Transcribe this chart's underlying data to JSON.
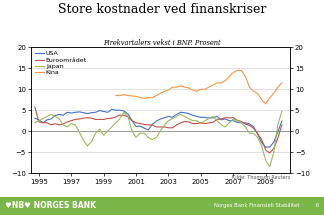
{
  "title": "Store kostnader ved finanskriser",
  "subtitle": "Firekvartalers vekst i BNP. Prosent",
  "source": "Kilde: Thomson Reuters",
  "footer_left": "♥NB♥ NORGES BANK",
  "footer_right": "Norges Bank Finansiell Stabilitet          6",
  "footer_bg": "#7ab648",
  "ylim": [
    -10,
    20
  ],
  "xlabel_years": [
    1995,
    1997,
    1999,
    2001,
    2003,
    2005,
    2007,
    2009
  ],
  "line_colors": {
    "USA": "#4472c4",
    "Euroområdet": "#c0504d",
    "Japan": "#9bbb59",
    "Kina": "#f79646"
  },
  "USA": {
    "x": [
      1994.75,
      1995.0,
      1995.25,
      1995.5,
      1995.75,
      1996.0,
      1996.25,
      1996.5,
      1996.75,
      1997.0,
      1997.25,
      1997.5,
      1997.75,
      1998.0,
      1998.25,
      1998.5,
      1998.75,
      1999.0,
      1999.25,
      1999.5,
      1999.75,
      2000.0,
      2000.25,
      2000.5,
      2000.75,
      2001.0,
      2001.25,
      2001.5,
      2001.75,
      2002.0,
      2002.25,
      2002.5,
      2002.75,
      2003.0,
      2003.25,
      2003.5,
      2003.75,
      2004.0,
      2004.25,
      2004.5,
      2004.75,
      2005.0,
      2005.25,
      2005.5,
      2005.75,
      2006.0,
      2006.25,
      2006.5,
      2006.75,
      2007.0,
      2007.25,
      2007.5,
      2007.75,
      2008.0,
      2008.25,
      2008.5,
      2008.75,
      2009.0,
      2009.25,
      2009.5,
      2009.75,
      2010.0
    ],
    "y": [
      3.1,
      2.7,
      2.0,
      2.7,
      2.9,
      3.7,
      4.0,
      3.8,
      4.5,
      4.3,
      4.5,
      4.6,
      4.4,
      4.2,
      4.4,
      4.5,
      4.9,
      4.7,
      4.5,
      5.2,
      5.0,
      5.0,
      4.8,
      4.1,
      2.5,
      1.1,
      1.2,
      0.7,
      0.3,
      1.6,
      2.4,
      2.9,
      3.2,
      3.5,
      3.3,
      4.0,
      4.5,
      4.4,
      4.2,
      3.8,
      3.5,
      3.3,
      3.3,
      3.1,
      3.2,
      3.5,
      2.7,
      2.9,
      2.5,
      2.5,
      2.1,
      2.0,
      2.0,
      1.7,
      1.1,
      -0.7,
      -2.7,
      -3.8,
      -3.8,
      -2.6,
      -0.2,
      2.4
    ]
  },
  "Euroområdet": {
    "x": [
      1994.75,
      1995.0,
      1995.25,
      1995.5,
      1995.75,
      1996.0,
      1996.25,
      1996.5,
      1996.75,
      1997.0,
      1997.25,
      1997.5,
      1997.75,
      1998.0,
      1998.25,
      1998.5,
      1998.75,
      1999.0,
      1999.25,
      1999.5,
      1999.75,
      2000.0,
      2000.25,
      2000.5,
      2000.75,
      2001.0,
      2001.25,
      2001.5,
      2001.75,
      2002.0,
      2002.25,
      2002.5,
      2002.75,
      2003.0,
      2003.25,
      2003.5,
      2003.75,
      2004.0,
      2004.25,
      2004.5,
      2004.75,
      2005.0,
      2005.25,
      2005.5,
      2005.75,
      2006.0,
      2006.25,
      2006.5,
      2006.75,
      2007.0,
      2007.25,
      2007.5,
      2007.75,
      2008.0,
      2008.25,
      2008.5,
      2008.75,
      2009.0,
      2009.25,
      2009.5,
      2009.75,
      2010.0
    ],
    "y": [
      5.8,
      2.2,
      2.0,
      2.0,
      1.5,
      1.8,
      1.5,
      1.7,
      2.2,
      2.5,
      2.8,
      2.9,
      3.1,
      3.2,
      3.1,
      2.8,
      2.8,
      2.8,
      3.0,
      3.1,
      3.4,
      3.8,
      3.8,
      3.4,
      2.5,
      2.0,
      1.8,
      1.6,
      1.5,
      1.5,
      1.0,
      1.0,
      1.0,
      0.8,
      0.8,
      1.5,
      2.0,
      2.3,
      2.2,
      1.8,
      1.8,
      2.0,
      1.8,
      2.0,
      2.1,
      2.8,
      2.9,
      3.2,
      3.2,
      3.2,
      2.6,
      2.3,
      1.7,
      1.4,
      0.7,
      -0.6,
      -2.0,
      -4.5,
      -5.2,
      -4.1,
      -1.7,
      1.5
    ]
  },
  "Japan": {
    "x": [
      1994.75,
      1995.0,
      1995.25,
      1995.5,
      1995.75,
      1996.0,
      1996.25,
      1996.5,
      1996.75,
      1997.0,
      1997.25,
      1997.5,
      1997.75,
      1998.0,
      1998.25,
      1998.5,
      1998.75,
      1999.0,
      1999.25,
      1999.5,
      1999.75,
      2000.0,
      2000.25,
      2000.5,
      2000.75,
      2001.0,
      2001.25,
      2001.5,
      2001.75,
      2002.0,
      2002.25,
      2002.5,
      2002.75,
      2003.0,
      2003.25,
      2003.5,
      2003.75,
      2004.0,
      2004.25,
      2004.5,
      2004.75,
      2005.0,
      2005.25,
      2005.5,
      2005.75,
      2006.0,
      2006.25,
      2006.5,
      2006.75,
      2007.0,
      2007.25,
      2007.5,
      2007.75,
      2008.0,
      2008.25,
      2008.5,
      2008.75,
      2009.0,
      2009.25,
      2009.5,
      2009.75,
      2010.0
    ],
    "y": [
      2.0,
      2.5,
      3.0,
      3.5,
      4.0,
      3.5,
      3.0,
      1.5,
      1.0,
      1.8,
      1.5,
      -0.2,
      -2.2,
      -3.5,
      -2.5,
      -0.5,
      0.5,
      -1.0,
      0.0,
      1.0,
      2.0,
      3.0,
      4.5,
      3.5,
      0.0,
      -1.5,
      -0.5,
      -0.5,
      -1.5,
      -2.0,
      -1.5,
      0.0,
      1.5,
      2.5,
      3.0,
      3.5,
      4.0,
      3.5,
      3.0,
      2.5,
      2.5,
      1.8,
      2.5,
      3.0,
      3.5,
      2.5,
      1.5,
      1.0,
      2.0,
      2.8,
      2.5,
      2.0,
      1.0,
      -0.5,
      -0.5,
      -1.5,
      -3.5,
      -7.0,
      -8.5,
      -5.0,
      1.5,
      4.8
    ]
  },
  "Kina": {
    "x": [
      1999.75,
      2000.0,
      2000.25,
      2000.5,
      2000.75,
      2001.0,
      2001.25,
      2001.5,
      2001.75,
      2002.0,
      2002.25,
      2002.5,
      2002.75,
      2003.0,
      2003.25,
      2003.5,
      2003.75,
      2004.0,
      2004.25,
      2004.5,
      2004.75,
      2005.0,
      2005.25,
      2005.5,
      2005.75,
      2006.0,
      2006.25,
      2006.5,
      2006.75,
      2007.0,
      2007.25,
      2007.5,
      2007.75,
      2008.0,
      2008.25,
      2008.5,
      2008.75,
      2009.0,
      2009.25,
      2009.5,
      2009.75,
      2010.0
    ],
    "y": [
      8.5,
      8.5,
      8.7,
      8.5,
      8.4,
      8.3,
      8.0,
      7.8,
      8.0,
      8.0,
      8.5,
      9.0,
      9.5,
      9.8,
      10.5,
      10.5,
      10.8,
      10.5,
      10.3,
      9.8,
      9.5,
      10.0,
      10.0,
      10.5,
      11.0,
      11.5,
      11.5,
      12.0,
      13.0,
      14.0,
      14.5,
      14.5,
      13.0,
      10.5,
      9.5,
      9.0,
      7.5,
      6.5,
      8.0,
      9.0,
      10.5,
      11.5
    ]
  }
}
